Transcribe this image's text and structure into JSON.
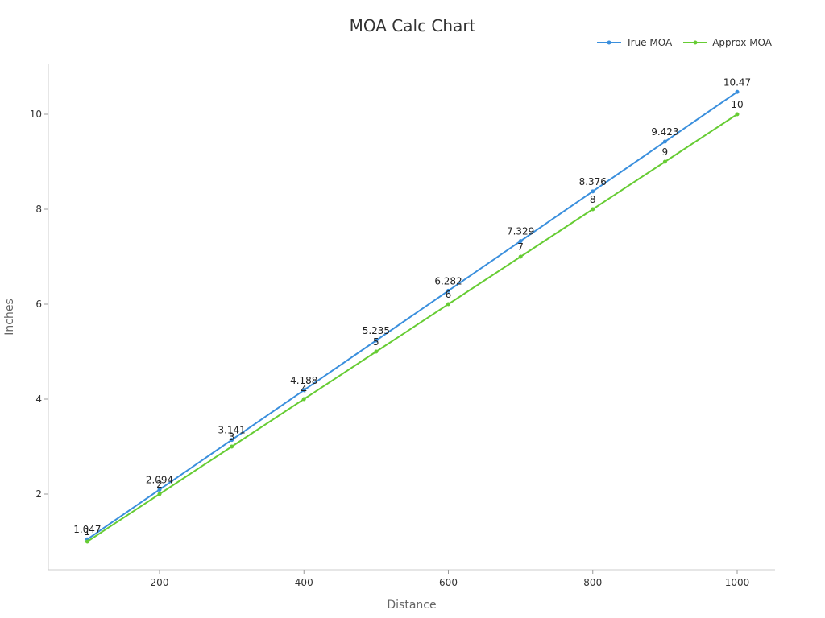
{
  "chart_data": {
    "type": "line",
    "title": "MOA Calc Chart",
    "xlabel": "Distance",
    "ylabel": "Inches",
    "x": [
      100,
      200,
      300,
      400,
      500,
      600,
      700,
      800,
      900,
      1000
    ],
    "series": [
      {
        "name": "True MOA",
        "color": "#3a8fdd",
        "values": [
          1.047,
          2.094,
          3.141,
          4.188,
          5.235,
          6.282,
          7.329,
          8.376,
          9.423,
          10.47
        ],
        "labels": [
          "1.047",
          "2.094",
          "3.141",
          "4.188",
          "5.235",
          "6.282",
          "7.329",
          "8.376",
          "9.423",
          "10.47"
        ]
      },
      {
        "name": "Approx MOA",
        "color": "#66cc33",
        "values": [
          1,
          2,
          3,
          4,
          5,
          6,
          7,
          8,
          9,
          10
        ],
        "labels": [
          "1",
          "2",
          "3",
          "4",
          "5",
          "6",
          "7",
          "8",
          "9",
          "10"
        ]
      }
    ],
    "x_ticks": [
      200,
      400,
      600,
      800,
      1000
    ],
    "y_ticks": [
      2,
      4,
      6,
      8,
      10
    ],
    "xlim": [
      45,
      1050
    ],
    "ylim": [
      0.15,
      11.05
    ],
    "grid": false,
    "legend_position": "top-right"
  }
}
